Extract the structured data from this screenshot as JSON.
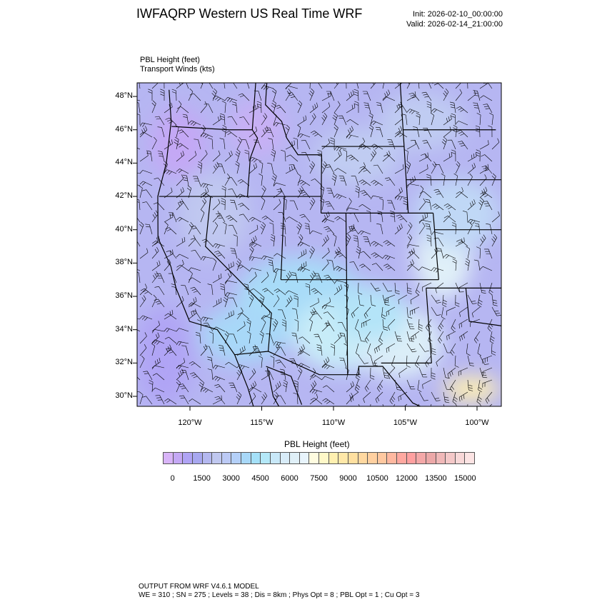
{
  "header": {
    "title": "IWFAQRP Western US Real Time WRF",
    "init": "Init: 2026-02-10_00:00:00",
    "valid": "Valid: 2026-02-14_21:00:00"
  },
  "fields": {
    "var1": "PBL Height   (feet)",
    "var2": "Transport Winds   (kts)"
  },
  "map": {
    "lat_labels": [
      "30°N",
      "32°N",
      "34°N",
      "36°N",
      "38°N",
      "40°N",
      "42°N",
      "44°N",
      "46°N",
      "48°N"
    ],
    "lat_values": [
      30,
      32,
      34,
      36,
      38,
      40,
      42,
      44,
      46,
      48
    ],
    "lon_labels": [
      "120°W",
      "115°W",
      "110°W",
      "105°W",
      "100°W"
    ],
    "lon_values": [
      -120,
      -115,
      -110,
      -105,
      -100
    ]
  },
  "colorbar": {
    "title": "PBL Height  (feet)",
    "labels": [
      "0",
      "1500",
      "3000",
      "4500",
      "6000",
      "7500",
      "9000",
      "10500",
      "12000",
      "13500",
      "15000"
    ],
    "colors": [
      "#d8b4f8",
      "#c4a8f5",
      "#b0a4f5",
      "#a8a8f0",
      "#b4b8f0",
      "#c0c8f0",
      "#bccaf5",
      "#b4d0f8",
      "#a8d8f8",
      "#a4e0f8",
      "#b4e8f8",
      "#c8e8f8",
      "#d8ecf8",
      "#e0f0f8",
      "#e8f4fc",
      "#fffce0",
      "#fff8c8",
      "#fff0b0",
      "#ffe8a8",
      "#ffe0a0",
      "#ffd8a0",
      "#ffd0a0",
      "#ffc8a0",
      "#ffb8a0",
      "#ffa8a0",
      "#ffa0a0",
      "#f4a8a8",
      "#eca8a8",
      "#f0b8b8",
      "#f4c8c8",
      "#f8d8d8",
      "#fce4e4"
    ]
  },
  "footer": {
    "line1": "OUTPUT FROM WRF V4.6.1 MODEL",
    "line2": "WE = 310 ; SN = 275 ; Levels = 38 ; Dis = 8km ; Phys Opt = 8 ; PBL Opt = 1 ; Cu Opt = 3"
  }
}
